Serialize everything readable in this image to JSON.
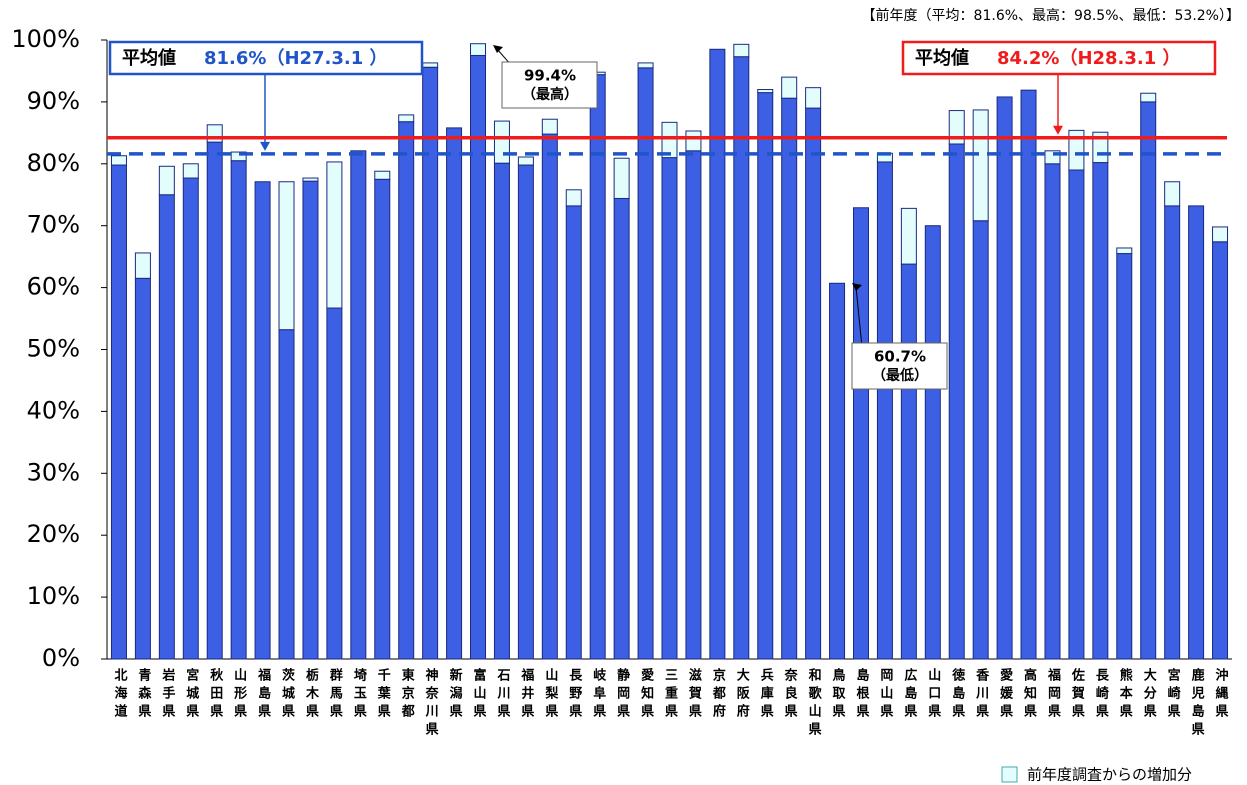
{
  "chart_data": {
    "type": "stacked_bar",
    "note": "【前年度（平均：81.6%、最高：98.5%、最低：53.2%）】",
    "categories": [
      "北海道",
      "青森県",
      "岩手県",
      "宮城県",
      "秋田県",
      "山形県",
      "福島県",
      "茨城県",
      "栃木県",
      "群馬県",
      "埼玉県",
      "千葉県",
      "東京都",
      "神奈川県",
      "新潟県",
      "富山県",
      "石川県",
      "福井県",
      "山梨県",
      "長野県",
      "岐阜県",
      "静岡県",
      "愛知県",
      "三重県",
      "滋賀県",
      "京都府",
      "大阪府",
      "兵庫県",
      "奈良県",
      "和歌山県",
      "鳥取県",
      "島根県",
      "岡山県",
      "広島県",
      "山口県",
      "徳島県",
      "香川県",
      "愛媛県",
      "高知県",
      "福岡県",
      "佐賀県",
      "長崎県",
      "熊本県",
      "大分県",
      "宮崎県",
      "鹿児島県",
      "沖縄県"
    ],
    "series": [
      {
        "color": "#3d5fe3",
        "values": [
          79.8,
          61.5,
          75.0,
          77.7,
          83.5,
          80.5,
          77.1,
          53.2,
          77.2,
          56.7,
          82.1,
          77.5,
          86.8,
          95.6,
          85.8,
          97.5,
          80.1,
          79.8,
          84.8,
          73.2,
          94.4,
          74.4,
          95.5,
          81.0,
          82.1,
          98.5,
          97.3,
          91.5,
          90.6,
          89.0,
          60.7,
          72.9,
          80.3,
          63.8,
          70.0,
          83.2,
          70.8,
          90.8,
          91.9,
          80.0,
          79.0,
          80.2,
          65.5,
          90.0,
          73.2,
          73.2,
          67.4
        ]
      },
      {
        "name": "前年度調査からの増加分",
        "color": "#e3fdfd",
        "values": [
          1.5,
          4.1,
          4.6,
          2.3,
          2.8,
          1.4,
          0,
          23.9,
          0.5,
          23.6,
          0,
          1.3,
          1.1,
          0.7,
          0,
          1.9,
          6.8,
          1.3,
          2.4,
          2.6,
          0.4,
          6.5,
          0.8,
          5.7,
          3.2,
          0,
          2.0,
          0.5,
          3.4,
          3.3,
          0,
          0,
          1.4,
          9.0,
          0,
          5.4,
          17.9,
          0,
          0,
          2.1,
          6.4,
          4.9,
          0.9,
          1.4,
          3.9,
          0,
          2.4
        ]
      }
    ],
    "ylim": [
      0,
      100
    ],
    "yticks": [
      {
        "value": 0,
        "label": "0%"
      },
      {
        "value": 10,
        "label": "10%"
      },
      {
        "value": 20,
        "label": "20%"
      },
      {
        "value": 30,
        "label": "30%"
      },
      {
        "value": 40,
        "label": "40%"
      },
      {
        "value": 50,
        "label": "50%"
      },
      {
        "value": 60,
        "label": "60%"
      },
      {
        "value": 70,
        "label": "70%"
      },
      {
        "value": 80,
        "label": "80%"
      },
      {
        "value": 90,
        "label": "90%"
      },
      {
        "value": 100,
        "label": "100%"
      }
    ],
    "reference_lines": [
      {
        "value": 81.6,
        "prefix": "平均値",
        "label": "81.6%（H27.3.1 ）",
        "color": "#1f55c8",
        "style": "dashed"
      },
      {
        "value": 84.2,
        "prefix": "平均値",
        "label": "84.2%（H28.3.1 ）",
        "color": "#f01c1c",
        "style": "solid"
      }
    ],
    "annotations": [
      {
        "label": "99.4%",
        "note": "（最高）"
      },
      {
        "label": "60.7%",
        "note": "（最低）"
      }
    ]
  }
}
